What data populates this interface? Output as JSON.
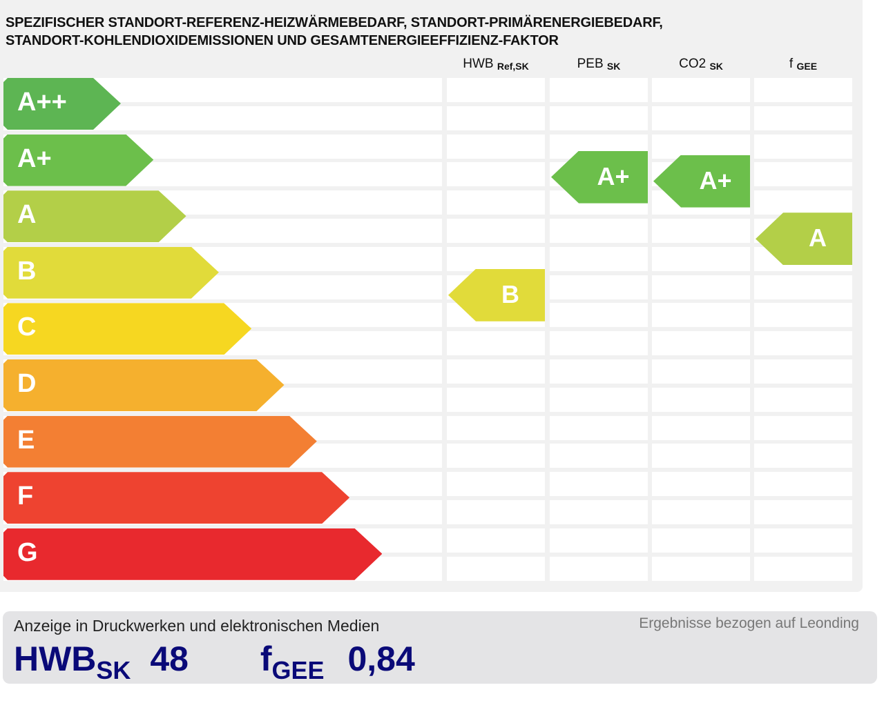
{
  "chart_data": {
    "type": "table",
    "title": "SPEZIFISCHER STANDORT-REFERENZ-HEIZWÄRMEBEDARF, STANDORT-PRIMÄRENERGIEBEDARF, STANDORT-KOHLENDIOXIDEMISSIONEN UND GESAMTENERGIEEFFIZIENZ-FAKTOR",
    "title_line1": "SPEZIFISCHER STANDORT-REFERENZ-HEIZWÄRMEBEDARF, STANDORT-PRIMÄRENERGIEBEDARF,",
    "title_line2": "STANDORT-KOHLENDIOXIDEMISSIONEN UND GESAMTENERGIEEFFIZIENZ-FAKTOR",
    "classes": [
      {
        "label": "A++",
        "color": "#5db553"
      },
      {
        "label": "A+",
        "color": "#6cbf4b"
      },
      {
        "label": "A",
        "color": "#b3cf48"
      },
      {
        "label": "B",
        "color": "#e1db3a"
      },
      {
        "label": "C",
        "color": "#f6d721"
      },
      {
        "label": "D",
        "color": "#f5b02e"
      },
      {
        "label": "E",
        "color": "#f37f33"
      },
      {
        "label": "F",
        "color": "#ee4330"
      },
      {
        "label": "G",
        "color": "#e8292e"
      }
    ],
    "columns": [
      {
        "name": "HWB",
        "sub": "Ref,SK",
        "rating": "B"
      },
      {
        "name": "PEB",
        "sub": "SK",
        "rating": "A+"
      },
      {
        "name": "CO2",
        "sub": "SK",
        "rating": "A+"
      },
      {
        "name": "f",
        "sub": "GEE",
        "rating": "A"
      }
    ]
  },
  "footer": {
    "caption": "Anzeige in Druckwerken und elektronischen Medien",
    "note": "Ergebnisse bezogen auf Leonding",
    "hwb_label": "HWB",
    "hwb_sub": "SK",
    "hwb_value": "48",
    "fgee_label": "f",
    "fgee_sub": "GEE",
    "fgee_value": "0,84"
  }
}
